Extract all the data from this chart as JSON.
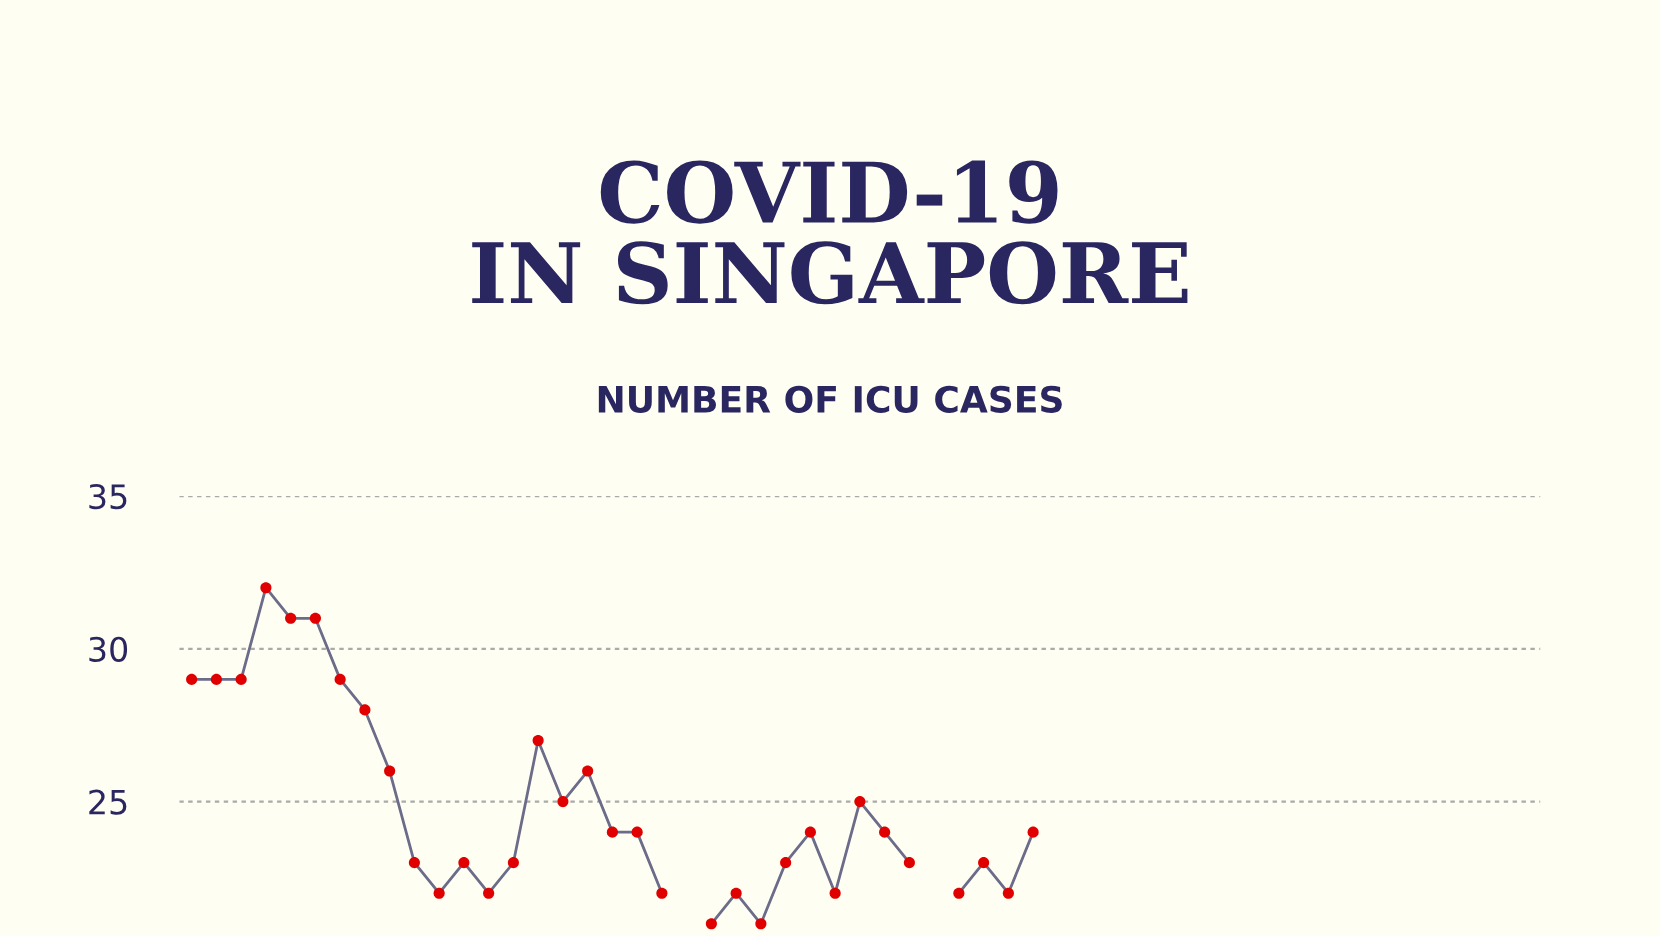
{
  "chart_data": {
    "type": "line",
    "title": "COVID-19\nIN SINGAPORE",
    "subtitle": "NUMBER OF ICU CASES",
    "categories": [
      null,
      null,
      null,
      null,
      null,
      null,
      null,
      null,
      null,
      null,
      null,
      null,
      null,
      null,
      null,
      null,
      null,
      null,
      null,
      null,
      null,
      null,
      null,
      null,
      null,
      null,
      null,
      null,
      null,
      null,
      null,
      null,
      null,
      null,
      null,
      null,
      null,
      null,
      null,
      null,
      null,
      null,
      null,
      null,
      null,
      null,
      null,
      null,
      null,
      null,
      null,
      null,
      null,
      null,
      null
    ],
    "series": [
      {
        "color": "#6b6b8a",
        "colors": [
          "#e00000",
          "#e00000",
          "#e00000",
          "#e00000",
          "#e00000",
          "#e00000",
          "#e00000",
          "#e00000",
          "#e00000",
          "#e00000",
          "#e00000",
          "#e00000",
          "#e00000",
          "#e00000",
          "#e00000",
          "#e00000",
          "#e00000",
          "#e00000",
          "#e00000",
          "#e00000",
          "#e00000",
          "#e00000",
          "#e00000",
          "#e00000",
          "#e00000",
          "#e00000",
          "#e00000",
          "#e00000",
          "#e00000",
          "#e00000",
          "#e00000",
          "#e00000",
          "#e00000",
          "#e00000",
          "#e00000",
          "#e00000",
          "#e00000",
          "#e00000",
          "#e00000",
          "#e00000",
          "#e00000",
          "#e00000",
          "#e00000",
          "#e00000",
          "#e00000",
          "#e00000",
          "#e00000",
          "#e00000",
          "#e00000",
          "#e00000",
          "#e00000",
          "#e00000",
          "#e00000",
          "#e00000",
          "#e00000"
        ],
        "values": [
          29,
          29,
          29,
          32,
          31,
          31,
          29,
          28,
          26,
          23,
          22,
          23,
          22,
          23,
          27,
          25,
          26,
          24,
          24,
          22,
          null,
          21,
          22,
          21,
          23,
          24,
          22,
          25,
          24,
          23,
          null,
          22,
          23,
          22,
          24,
          null,
          null,
          null,
          null,
          null,
          null,
          null,
          null,
          null,
          null,
          null,
          null,
          null,
          null,
          null,
          null,
          null,
          null,
          null,
          null
        ]
      }
    ],
    "marker": "circle",
    "line_style": "solid",
    "ylim": [
      20.6,
      35
    ],
    "yticks": [
      25,
      30,
      35
    ],
    "grid": "y",
    "tick_labels": "y"
  }
}
